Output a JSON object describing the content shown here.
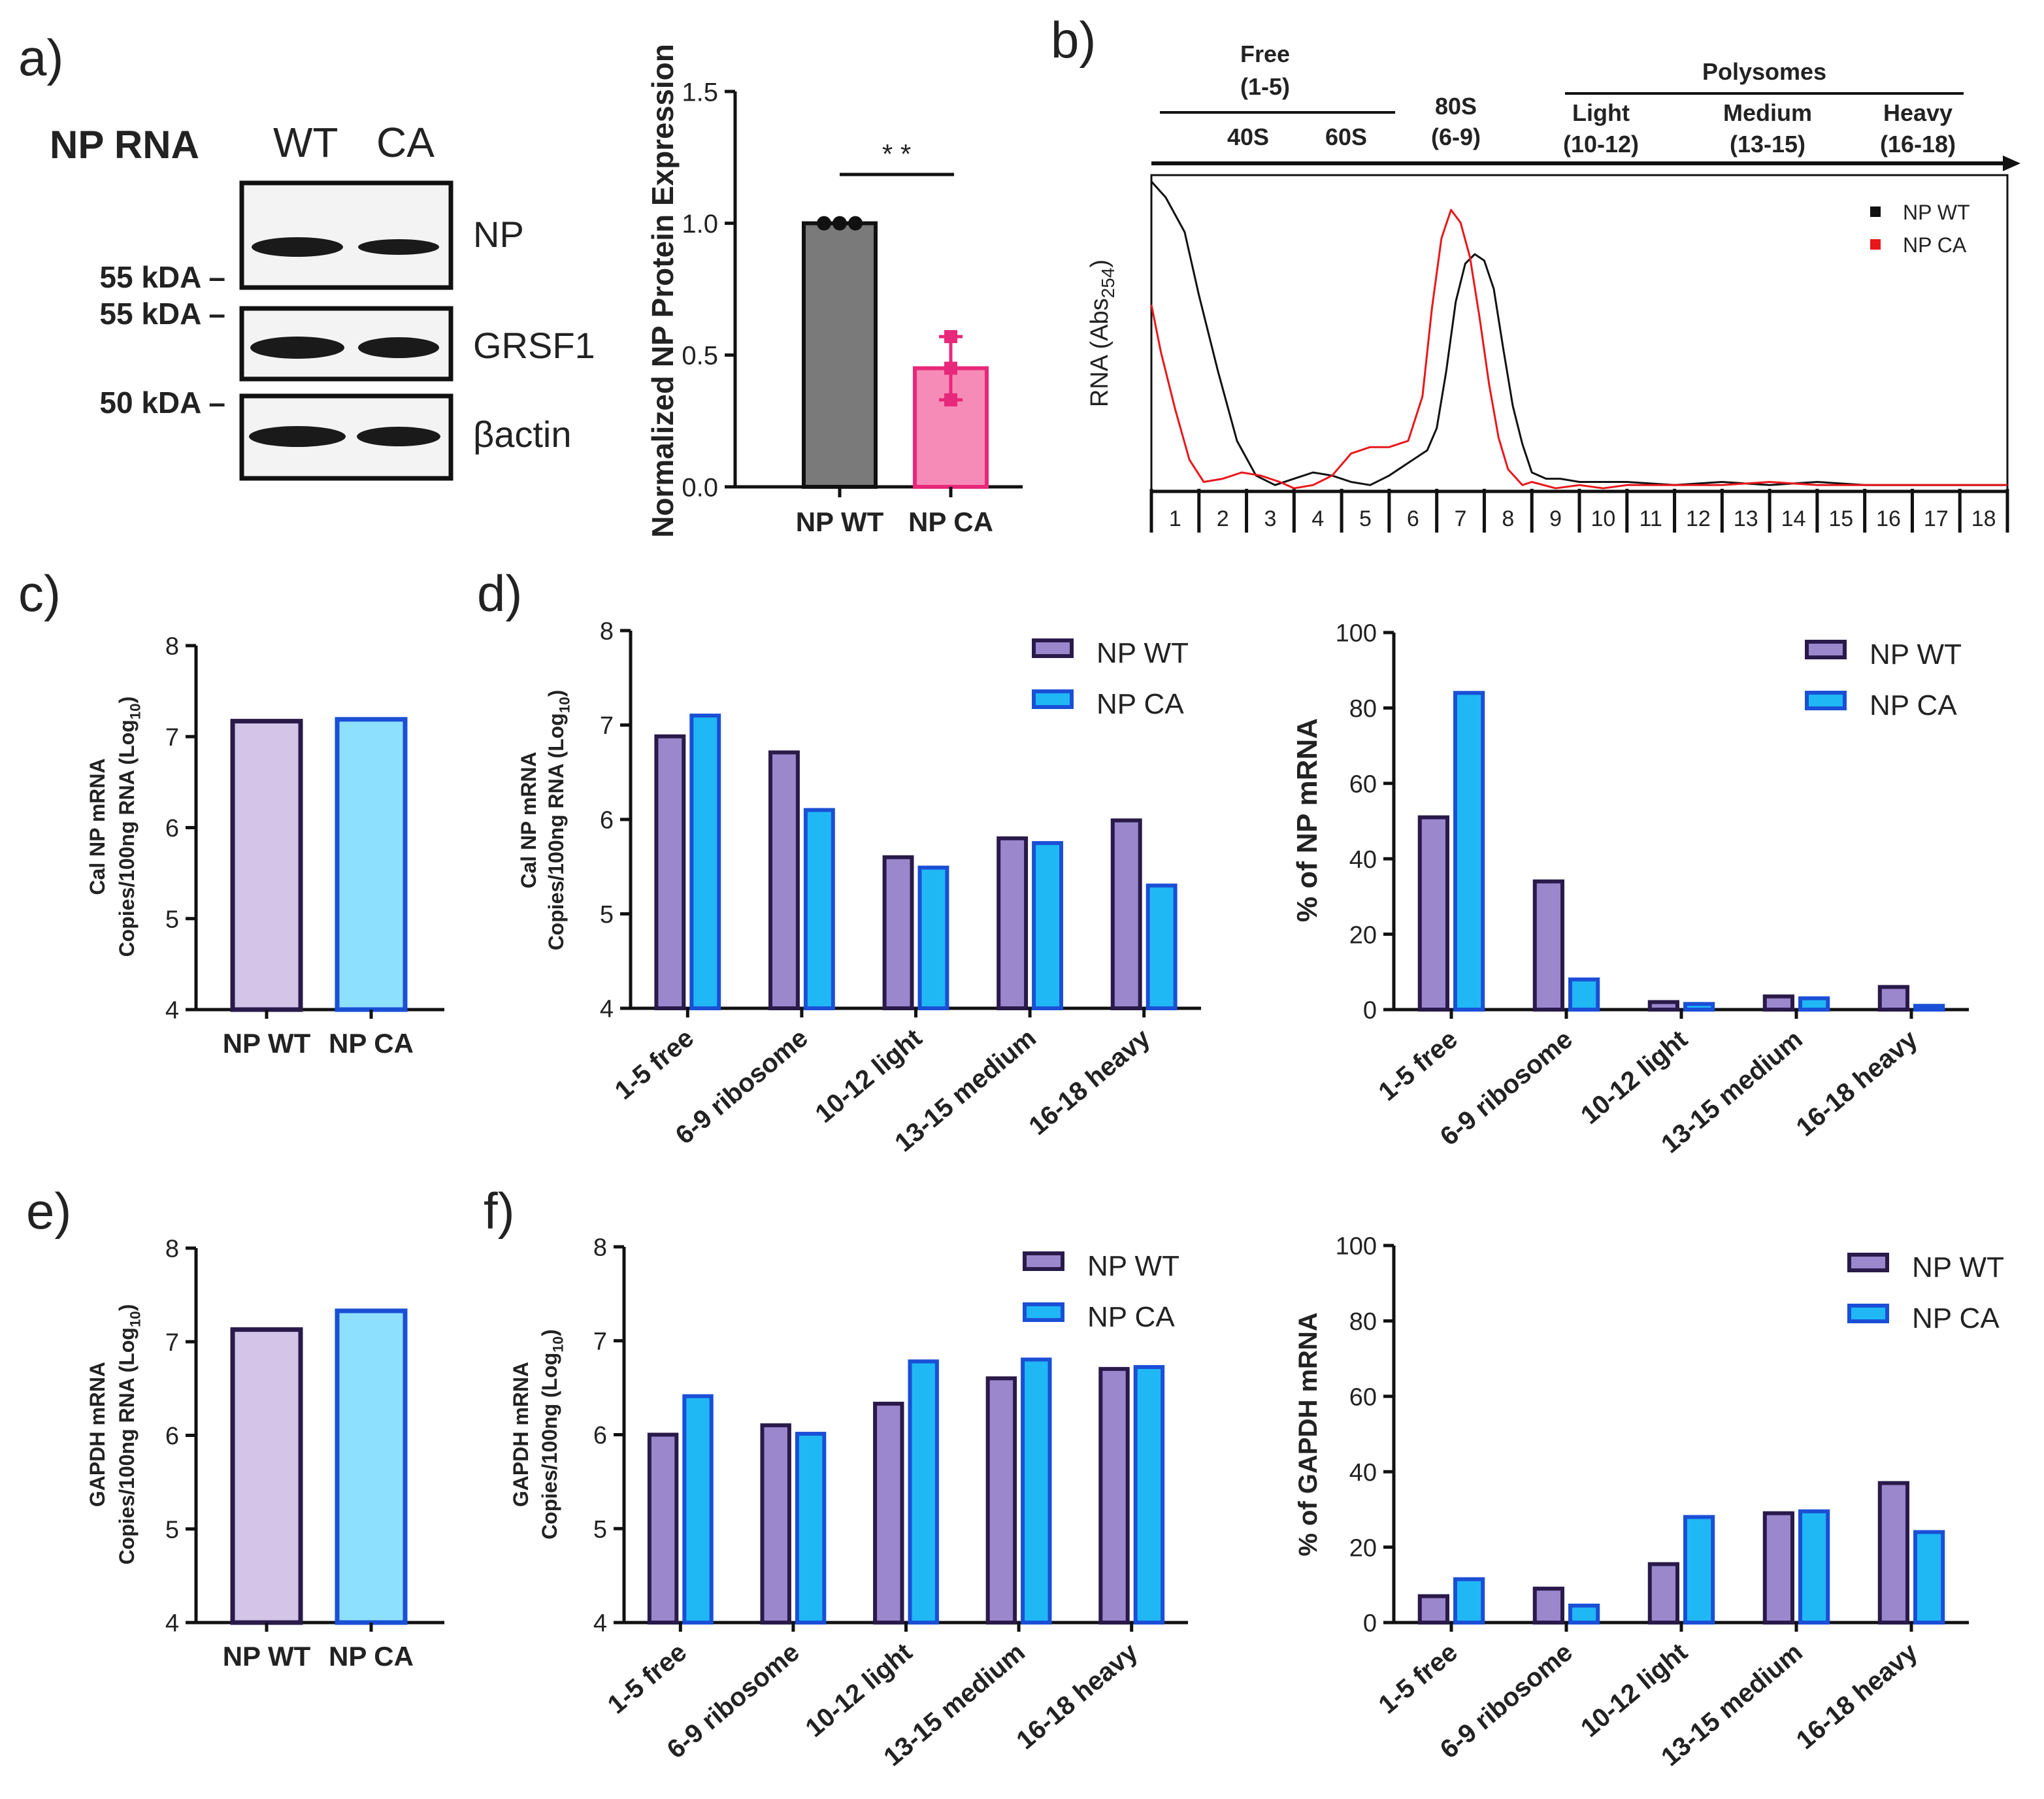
{
  "panel_labels": {
    "a": "a)",
    "b": "b)",
    "c": "c)",
    "d": "d)",
    "e": "e)",
    "f": "f)"
  },
  "western_blot": {
    "title": "NP RNA",
    "lanes": [
      "WT",
      "CA"
    ],
    "bands": [
      "NP",
      "GRSF1",
      "βactin"
    ],
    "markers": [
      "55 kDA –",
      "55 kDA –",
      "50 kDA –"
    ],
    "band_intensity": {
      "NP": [
        1.0,
        0.35
      ],
      "GRSF1": [
        1.0,
        0.95
      ],
      "βactin": [
        1.0,
        0.95
      ]
    }
  },
  "colors": {
    "wt_fill_light": "#d4c5e8",
    "wt_fill": "#9b87cc",
    "wt_edge": "#2a1a4a",
    "ca_fill_light": "#8ee0ff",
    "ca_fill": "#1fb8f5",
    "ca_edge": "#1a4fd6",
    "gray_bar": "#7a7a7a",
    "pink_bar": "#f78bb8",
    "pink_edge": "#e8287a",
    "profile_wt": "#111111",
    "profile_ca": "#e8171b"
  },
  "chart_data": [
    {
      "id": "a-bar",
      "type": "bar",
      "categories": [
        "NP WT",
        "NP CA"
      ],
      "values": [
        1.0,
        0.45
      ],
      "points": [
        [
          1.0,
          1.0,
          1.0
        ],
        [
          0.57,
          0.33,
          0.45
        ]
      ],
      "error": [
        0.0,
        0.12
      ],
      "ylabel": "Normalized NP Protein Expression",
      "ylim": [
        0,
        1.5
      ],
      "yticks": [
        "0.0",
        "0.5",
        "1.0",
        "1.5"
      ],
      "significance": "* *"
    },
    {
      "id": "b-profile",
      "type": "line",
      "ylabel": "RNA (Abs",
      "ylabel_sub": "254",
      "ylabel_close": ")",
      "fractions": [
        "1",
        "2",
        "3",
        "4",
        "5",
        "6",
        "7",
        "8",
        "9",
        "10",
        "11",
        "12",
        "13",
        "14",
        "15",
        "16",
        "17",
        "18"
      ],
      "header": {
        "free_title": "Free",
        "free_range": "(1-5)",
        "sub_40s": "40S",
        "sub_60s": "60S",
        "s80_title": "80S",
        "s80_range": "(6-9)",
        "polysomes": "Polysomes",
        "light": "Light",
        "light_range": "(10-12)",
        "medium": "Medium",
        "medium_range": "(13-15)",
        "heavy": "Heavy",
        "heavy_range": "(16-18)"
      },
      "legend": [
        "NP WT",
        "NP CA"
      ],
      "series": [
        {
          "name": "NP WT",
          "x": [
            0.0,
            0.3,
            0.7,
            1.0,
            1.4,
            1.8,
            2.2,
            2.6,
            3.0,
            3.4,
            3.8,
            4.2,
            4.6,
            5.0,
            5.4,
            5.8,
            6.0,
            6.2,
            6.4,
            6.6,
            6.8,
            7.0,
            7.2,
            7.4,
            7.6,
            7.8,
            8.0,
            8.3,
            8.6,
            9.0,
            9.5,
            10,
            11,
            12,
            13,
            14,
            15,
            16,
            17,
            18
          ],
          "y": [
            0.98,
            0.93,
            0.82,
            0.62,
            0.38,
            0.16,
            0.05,
            0.02,
            0.04,
            0.06,
            0.05,
            0.03,
            0.02,
            0.05,
            0.09,
            0.13,
            0.2,
            0.38,
            0.6,
            0.72,
            0.75,
            0.73,
            0.64,
            0.45,
            0.27,
            0.15,
            0.06,
            0.04,
            0.04,
            0.03,
            0.03,
            0.03,
            0.02,
            0.03,
            0.02,
            0.03,
            0.02,
            0.02,
            0.02,
            0.02
          ]
        },
        {
          "name": "NP CA",
          "x": [
            0.0,
            0.2,
            0.5,
            0.8,
            1.1,
            1.5,
            1.9,
            2.3,
            2.7,
            3.0,
            3.4,
            3.8,
            4.2,
            4.6,
            5.0,
            5.4,
            5.7,
            5.9,
            6.1,
            6.3,
            6.5,
            6.7,
            6.9,
            7.1,
            7.3,
            7.5,
            7.8,
            8.0,
            8.5,
            9.0,
            9.5,
            10,
            11,
            12,
            13,
            14,
            15,
            16,
            17,
            18
          ],
          "y": [
            0.59,
            0.44,
            0.26,
            0.1,
            0.03,
            0.04,
            0.06,
            0.05,
            0.03,
            0.01,
            0.02,
            0.05,
            0.12,
            0.14,
            0.14,
            0.16,
            0.3,
            0.58,
            0.8,
            0.89,
            0.85,
            0.74,
            0.55,
            0.34,
            0.17,
            0.07,
            0.02,
            0.03,
            0.01,
            0.02,
            0.01,
            0.02,
            0.02,
            0.02,
            0.03,
            0.02,
            0.02,
            0.02,
            0.02,
            0.02
          ]
        }
      ]
    },
    {
      "id": "c-bar",
      "type": "bar",
      "categories": [
        "NP WT",
        "NP CA"
      ],
      "values": [
        7.17,
        7.19
      ],
      "ylabel_line1": "Cal NP mRNA",
      "ylabel_line2": "Copies/100ng RNA (Log",
      "ylabel_sub": "10",
      "ylabel_close": ")",
      "ylim": [
        4,
        8
      ],
      "yticks": [
        "4",
        "5",
        "6",
        "7",
        "8"
      ]
    },
    {
      "id": "d-left",
      "type": "bar",
      "categories": [
        "1-5 free",
        "6-9 ribosome",
        "10-12 light",
        "13-15 medium",
        "16-18 heavy"
      ],
      "series": [
        {
          "name": "NP WT",
          "values": [
            6.88,
            6.71,
            5.6,
            5.8,
            5.99
          ]
        },
        {
          "name": "NP CA",
          "values": [
            7.1,
            6.1,
            5.49,
            5.75,
            5.3
          ]
        }
      ],
      "ylabel_line1": "Cal NP mRNA",
      "ylabel_line2": "Copies/100ng RNA (Log",
      "ylabel_sub": "10",
      "ylabel_close": ")",
      "ylim": [
        4,
        8
      ],
      "yticks": [
        "4",
        "5",
        "6",
        "7",
        "8"
      ]
    },
    {
      "id": "d-right",
      "type": "bar",
      "categories": [
        "1-5 free",
        "6-9 ribosome",
        "10-12 light",
        "13-15 medium",
        "16-18 heavy"
      ],
      "series": [
        {
          "name": "NP WT",
          "values": [
            51,
            34,
            2,
            3.5,
            6
          ]
        },
        {
          "name": "NP CA",
          "values": [
            84,
            8,
            1.5,
            3,
            1
          ]
        }
      ],
      "ylabel": "% of NP mRNA",
      "ylim": [
        0,
        100
      ],
      "yticks": [
        "0",
        "20",
        "40",
        "60",
        "80",
        "100"
      ]
    },
    {
      "id": "e-bar",
      "type": "bar",
      "categories": [
        "NP WT",
        "NP CA"
      ],
      "values": [
        7.13,
        7.33
      ],
      "ylabel_line1": "GAPDH mRNA",
      "ylabel_line2": "Copies/100ng RNA (Log",
      "ylabel_sub": "10",
      "ylabel_close": ")",
      "ylim": [
        4,
        8
      ],
      "yticks": [
        "4",
        "5",
        "6",
        "7",
        "8"
      ]
    },
    {
      "id": "f-left",
      "type": "bar",
      "categories": [
        "1-5 free",
        "6-9 ribosome",
        "10-12 light",
        "13-15 medium",
        "16-18 heavy"
      ],
      "series": [
        {
          "name": "NP WT",
          "values": [
            6.0,
            6.1,
            6.33,
            6.6,
            6.7
          ]
        },
        {
          "name": "NP CA",
          "values": [
            6.41,
            6.01,
            6.78,
            6.8,
            6.72
          ]
        }
      ],
      "ylabel_line1": "GAPDH mRNA",
      "ylabel_line2": "Copies/100ng (Log",
      "ylabel_sub": "10",
      "ylabel_close": ")",
      "ylim": [
        4,
        8
      ],
      "yticks": [
        "4",
        "5",
        "6",
        "7",
        "8"
      ]
    },
    {
      "id": "f-right",
      "type": "bar",
      "categories": [
        "1-5 free",
        "6-9 ribosome",
        "10-12 light",
        "13-15 medium",
        "16-18 heavy"
      ],
      "series": [
        {
          "name": "NP WT",
          "values": [
            7,
            9,
            15.5,
            29,
            37
          ]
        },
        {
          "name": "NP CA",
          "values": [
            11.5,
            4.5,
            28,
            29.5,
            24
          ]
        }
      ],
      "ylabel": "% of GAPDH mRNA",
      "ylim": [
        0,
        100
      ],
      "yticks": [
        "0",
        "20",
        "40",
        "60",
        "80",
        "100"
      ]
    }
  ]
}
